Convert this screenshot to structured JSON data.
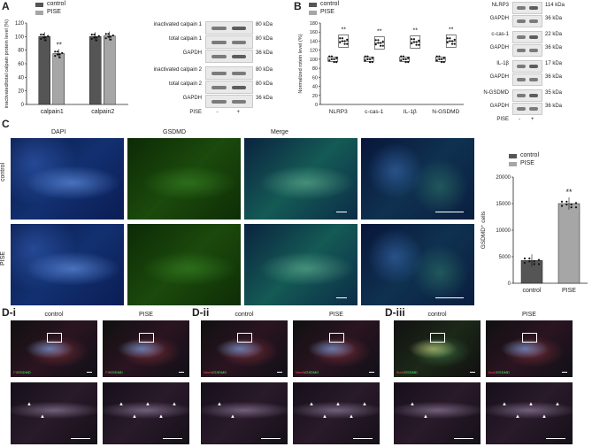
{
  "panels": {
    "A": "A",
    "B": "B",
    "C": "C",
    "Di": "D-i",
    "Dii": "D-ii",
    "Diii": "D-iii"
  },
  "legend": {
    "control": "control",
    "pise": "PISE"
  },
  "colors": {
    "control": "#555555",
    "pise": "#a6a6a6"
  },
  "A_chart": {
    "type": "bar",
    "ylabel": "inactivated/total calpain protein level (%)",
    "yticks": [
      "0",
      "20",
      "40",
      "60",
      "80",
      "100",
      "120"
    ],
    "ylim": [
      0,
      120
    ],
    "categories": [
      "calpain1",
      "calpain2"
    ],
    "series": [
      {
        "name": "control",
        "values": [
          100,
          100
        ]
      },
      {
        "name": "PISE",
        "values": [
          75,
          101
        ]
      }
    ],
    "significance": [
      "**",
      ""
    ]
  },
  "A_blot": {
    "rows": [
      {
        "label": "inactivated calpain 1",
        "kda": "80 kDa"
      },
      {
        "label": "total calpain 1",
        "kda": "80 kDa"
      },
      {
        "label": "GAPDH",
        "kda": "36 kDa"
      },
      {
        "label": "inactivated calpain 2",
        "kda": "80 kDa"
      },
      {
        "label": "total calpain 2",
        "kda": "80 kDa"
      },
      {
        "label": "GAPDH",
        "kda": "36 kDa"
      }
    ],
    "pise_label": "PISE",
    "minus": "-",
    "plus": "+"
  },
  "B_chart": {
    "type": "bar",
    "ylabel": "Normalized rotein level (%)",
    "yticks": [
      "0",
      "20",
      "40",
      "60",
      "80",
      "100",
      "120",
      "140",
      "160",
      "180"
    ],
    "ylim": [
      0,
      180
    ],
    "categories": [
      "NLRP3",
      "c-cas-1",
      "IL-1β",
      "N-GSDMD"
    ],
    "series": [
      {
        "name": "control",
        "values": [
          100,
          100,
          100,
          100
        ]
      },
      {
        "name": "PISE",
        "values": [
          140,
          136,
          138,
          140
        ]
      }
    ],
    "significance": [
      "**",
      "**",
      "**",
      "**"
    ]
  },
  "B_blot": {
    "rows": [
      {
        "label": "NLRP3",
        "kda": "114 kDa"
      },
      {
        "label": "GAPDH",
        "kda": "36 kDa"
      },
      {
        "label": "c-cas-1",
        "kda": "22 kDa"
      },
      {
        "label": "GAPDH",
        "kda": "36 kDa"
      },
      {
        "label": "IL-1β",
        "kda": "17 kDa"
      },
      {
        "label": "GAPDH",
        "kda": "36 kDa"
      },
      {
        "label": "N-GSDMD",
        "kda": "35 kDa"
      },
      {
        "label": "GAPDH",
        "kda": "36 kDa"
      }
    ],
    "pise_label": "PISE",
    "minus": "-",
    "plus": "+"
  },
  "C_images": {
    "columns": [
      "DAPI",
      "GSDMD",
      "Merge"
    ],
    "rows": [
      "control",
      "PISE"
    ]
  },
  "C_chart": {
    "type": "bar",
    "ylabel": "GSDMD⁺ cells",
    "yticks": [
      "0",
      "5000",
      "10000",
      "15000",
      "20000"
    ],
    "ylim": [
      0,
      20000
    ],
    "categories": [
      "control",
      "PISE"
    ],
    "values": [
      4300,
      15000
    ],
    "significance": [
      "",
      "**"
    ]
  },
  "D": {
    "groups": [
      {
        "id": "D-i",
        "control": "control",
        "pise": "PISE",
        "stain_a": "PI",
        "stain_b": "GSDMD",
        "stain_a2": "PI",
        "stain_b2": "GSDMD"
      },
      {
        "id": "D-ii",
        "control": "control",
        "pise": "PISE",
        "stain_a": "NeuN",
        "stain_b": "GSDMD",
        "stain_a2": "NeuN",
        "stain_b2": "GSDMD"
      },
      {
        "id": "D-iii",
        "control": "control",
        "pise": "PISE",
        "stain_a": "Iba1",
        "stain_b": "GSDMD",
        "stain_a2": "Iba1",
        "stain_b2": "GSDMD"
      }
    ]
  }
}
